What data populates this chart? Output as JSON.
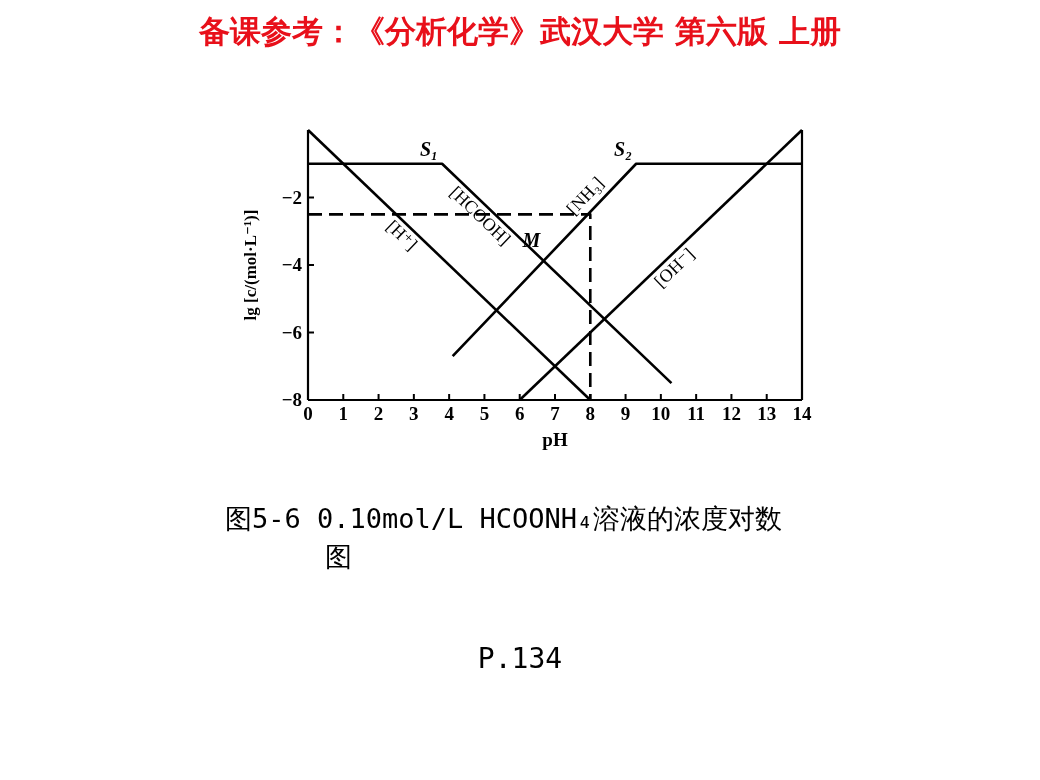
{
  "chart_data": {
    "type": "line",
    "title": "备课参考：《分析化学》武汉大学 第六版 上册",
    "xlabel": "pH",
    "ylabel": "lg [c/(mol·L⁻¹)]",
    "xlim": [
      0,
      14
    ],
    "ylim": [
      -8,
      0
    ],
    "xticks": [
      0,
      1,
      2,
      3,
      4,
      5,
      6,
      7,
      8,
      9,
      10,
      11,
      12,
      13,
      14
    ],
    "yticks": [
      {
        "value": -8,
        "label": "−8"
      },
      {
        "value": -6,
        "label": "−6"
      },
      {
        "value": -4,
        "label": "−4"
      },
      {
        "value": -2,
        "label": "−2"
      }
    ],
    "grid": false,
    "legend": false,
    "marker": "none",
    "series": [
      {
        "name": "[H⁺]",
        "color": "#000000",
        "line_style": "solid",
        "x": [
          0,
          8
        ],
        "values": [
          0,
          -8
        ]
      },
      {
        "name": "[HCOOH]",
        "color": "#000000",
        "line_style": "solid",
        "x": [
          0,
          3.8,
          10.3
        ],
        "values": [
          -1,
          -1,
          -7.5
        ]
      },
      {
        "name": "[NH₃]",
        "color": "#000000",
        "line_style": "solid",
        "x": [
          4.1,
          9.3,
          14
        ],
        "values": [
          -6.7,
          -1,
          -1
        ]
      },
      {
        "name": "[OH⁻]",
        "color": "#000000",
        "line_style": "solid",
        "x": [
          6,
          14
        ],
        "values": [
          -8,
          0
        ]
      },
      {
        "color": "#000000",
        "line_style": "dashed",
        "x": [
          0,
          8,
          8
        ],
        "values": [
          -2.5,
          -2.5,
          -8
        ]
      }
    ],
    "annotations": [
      {
        "text": "S₁",
        "x": 3.8,
        "y": -1
      },
      {
        "text": "S₂",
        "x": 9.3,
        "y": -1
      },
      {
        "text": "M",
        "x": 6.7,
        "y": -3.7
      },
      "图5-6 0.10mol/L HCOONH₄溶液的浓度对数图",
      "P.134"
    ]
  }
}
